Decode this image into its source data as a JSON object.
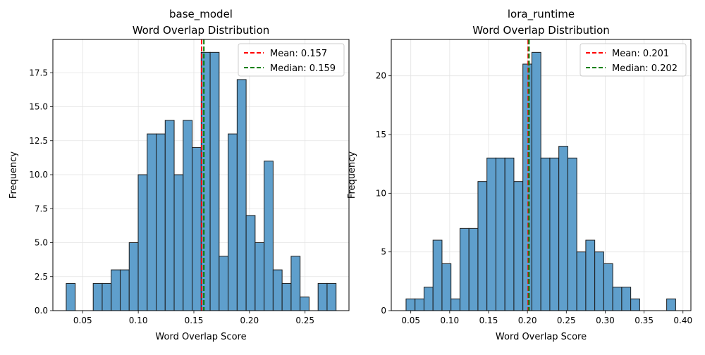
{
  "chart_data": [
    {
      "type": "bar",
      "title_line1": "base_model",
      "title_line2": "Word Overlap Distribution",
      "xlabel": "Word Overlap Score",
      "ylabel": "Frequency",
      "bin_start": 0.0352,
      "bin_end": 0.2779,
      "values": [
        2,
        0,
        0,
        2,
        2,
        3,
        3,
        5,
        10,
        13,
        13,
        14,
        10,
        14,
        12,
        19,
        19,
        4,
        13,
        17,
        7,
        5,
        11,
        3,
        2,
        4,
        1,
        0,
        2,
        2
      ],
      "xlim": [
        0.0232,
        0.2895
      ],
      "ylim": [
        0,
        19.95
      ],
      "xticks": [
        0.05,
        0.1,
        0.15,
        0.2,
        0.25
      ],
      "xtick_labels": [
        "0.05",
        "0.10",
        "0.15",
        "0.20",
        "0.25"
      ],
      "yticks": [
        0,
        2.5,
        5,
        7.5,
        10,
        12.5,
        15,
        17.5
      ],
      "ytick_labels": [
        "0.0",
        "2.5",
        "5.0",
        "7.5",
        "10.0",
        "12.5",
        "15.0",
        "17.5"
      ],
      "mean": 0.157,
      "median": 0.159,
      "legend": {
        "mean_label": "Mean: 0.157",
        "median_label": "Median: 0.159",
        "placement": "top-right"
      },
      "grid": true,
      "bar_color": "#5f9fcc",
      "mean_color": "#ff0000",
      "median_color": "#008000"
    },
    {
      "type": "bar",
      "title_line1": "lora_runtime",
      "title_line2": "Word Overlap Distribution",
      "xlabel": "Word Overlap Score",
      "ylabel": "Frequency",
      "bin_start": 0.0439,
      "bin_end": 0.3906,
      "values": [
        1,
        1,
        2,
        6,
        4,
        1,
        7,
        7,
        11,
        13,
        13,
        13,
        11,
        21,
        22,
        13,
        13,
        14,
        13,
        5,
        6,
        5,
        4,
        2,
        2,
        1,
        0,
        0,
        0,
        1
      ],
      "xlim": [
        0.0249,
        0.4102
      ],
      "ylim": [
        0,
        23.1
      ],
      "xticks": [
        0.05,
        0.1,
        0.15,
        0.2,
        0.25,
        0.3,
        0.35,
        0.4
      ],
      "xtick_labels": [
        "0.05",
        "0.10",
        "0.15",
        "0.20",
        "0.25",
        "0.30",
        "0.35",
        "0.40"
      ],
      "yticks": [
        0,
        5,
        10,
        15,
        20
      ],
      "ytick_labels": [
        "0",
        "5",
        "10",
        "15",
        "20"
      ],
      "mean": 0.201,
      "median": 0.202,
      "legend": {
        "mean_label": "Mean: 0.201",
        "median_label": "Median: 0.202",
        "placement": "top-right"
      },
      "grid": true,
      "bar_color": "#5f9fcc",
      "mean_color": "#ff0000",
      "median_color": "#008000"
    }
  ]
}
